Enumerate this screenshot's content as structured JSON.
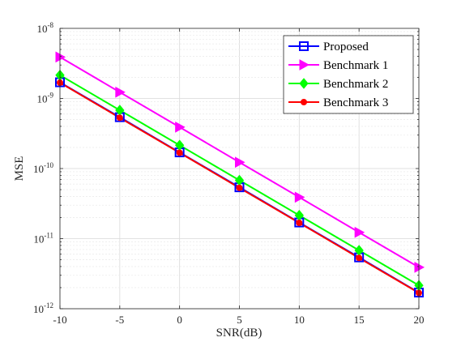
{
  "chart_data": {
    "type": "line",
    "xlabel": "SNR(dB)",
    "ylabel": "MSE",
    "y_scale": "log",
    "xlim": [
      -10,
      20
    ],
    "ylim": [
      1e-12,
      1e-08
    ],
    "grid": true,
    "legend_position": "top-right",
    "x_ticks": [
      "-10",
      "-5",
      "0",
      "5",
      "10",
      "15",
      "20"
    ],
    "y_ticks": [
      {
        "base": "10",
        "exp": "-12",
        "value": 1e-12
      },
      {
        "base": "10",
        "exp": "-11",
        "value": 1e-11
      },
      {
        "base": "10",
        "exp": "-10",
        "value": 1e-10
      },
      {
        "base": "10",
        "exp": "-9",
        "value": 1e-09
      },
      {
        "base": "10",
        "exp": "-8",
        "value": 1e-08
      }
    ],
    "x": [
      -10,
      -5,
      0,
      5,
      10,
      15,
      20
    ],
    "series": [
      {
        "name": "Proposed",
        "color": "#0000ff",
        "marker": "square",
        "values": [
          1.7e-09,
          5.4e-10,
          1.7e-10,
          5.4e-11,
          1.7e-11,
          5.4e-12,
          1.7e-12
        ]
      },
      {
        "name": "Benchmark 1",
        "color": "#ff00ff",
        "marker": "triangle-right",
        "values": [
          3.9e-09,
          1.23e-09,
          3.9e-10,
          1.23e-10,
          3.9e-11,
          1.23e-11,
          3.9e-12
        ]
      },
      {
        "name": "Benchmark 2",
        "color": "#00ff00",
        "marker": "diamond",
        "values": [
          2.15e-09,
          6.8e-10,
          2.15e-10,
          6.8e-11,
          2.15e-11,
          6.8e-12,
          2.15e-12
        ]
      },
      {
        "name": "Benchmark 3",
        "color": "#ff0000",
        "marker": "circle",
        "values": [
          1.68e-09,
          5.3e-10,
          1.68e-10,
          5.3e-11,
          1.68e-11,
          5.3e-12,
          1.68e-12
        ]
      }
    ]
  }
}
